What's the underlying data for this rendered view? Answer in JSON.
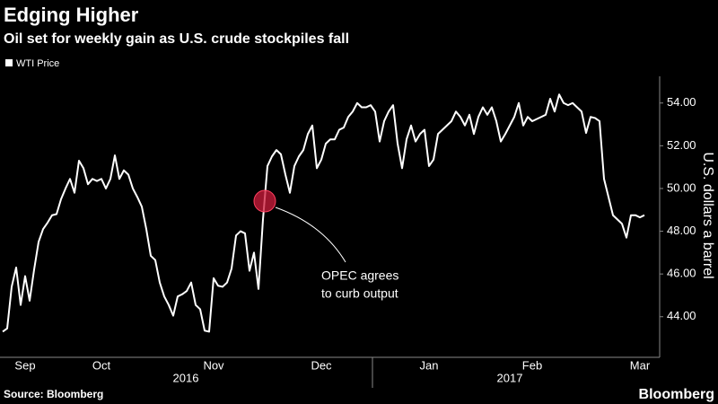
{
  "chart_data": {
    "type": "line",
    "title": "Edging Higher",
    "subtitle": "Oil set for weekly gain as U.S. crude stockpiles fall",
    "y_axis_label": "U.S. dollars a barrel",
    "annotation": [
      "OPEC agrees",
      "to curb output"
    ],
    "years": [
      "2016",
      "2017"
    ],
    "source": "Source: Bloomberg",
    "brand": "Bloomberg",
    "categories": [
      null,
      null,
      null,
      null,
      null,
      "Sep",
      null,
      null,
      null,
      null,
      null,
      null,
      null,
      null,
      null,
      null,
      null,
      null,
      null,
      null,
      null,
      null,
      "Oct",
      null,
      null,
      null,
      null,
      null,
      null,
      null,
      null,
      null,
      null,
      null,
      null,
      null,
      null,
      null,
      null,
      null,
      null,
      null,
      null,
      null,
      null,
      null,
      null,
      "Nov",
      null,
      null,
      null,
      null,
      null,
      null,
      null,
      null,
      null,
      null,
      null,
      null,
      null,
      null,
      null,
      null,
      null,
      null,
      null,
      null,
      null,
      null,
      null,
      "Dec",
      null,
      null,
      null,
      null,
      null,
      null,
      null,
      null,
      null,
      null,
      null,
      null,
      null,
      null,
      null,
      null,
      null,
      null,
      null,
      null,
      null,
      null,
      null,
      "Jan",
      null,
      null,
      null,
      null,
      null,
      null,
      null,
      null,
      null,
      null,
      null,
      null,
      null,
      null,
      null,
      null,
      null,
      null,
      null,
      null,
      null,
      null,
      "Feb",
      null,
      null,
      null,
      null,
      null,
      null,
      null,
      null,
      null,
      null,
      null,
      null,
      null,
      null,
      null,
      null,
      null,
      null,
      null,
      null,
      null,
      null,
      null,
      "Mar",
      null
    ],
    "series": [
      {
        "name": "WTI Price",
        "color": "#ffffff",
        "values": [
          43.3,
          43.45,
          45.4,
          46.3,
          44.55,
          45.9,
          44.75,
          46.2,
          47.5,
          48.1,
          48.4,
          48.75,
          48.8,
          49.5,
          50.0,
          50.45,
          49.8,
          51.3,
          50.95,
          50.2,
          50.45,
          50.35,
          50.45,
          50.0,
          50.45,
          51.55,
          50.45,
          50.85,
          50.65,
          50.0,
          49.6,
          49.15,
          48.1,
          46.85,
          46.65,
          45.6,
          44.95,
          44.55,
          44.05,
          44.95,
          45.05,
          45.2,
          45.6,
          44.55,
          44.35,
          43.35,
          43.3,
          45.8,
          45.45,
          45.4,
          45.6,
          46.25,
          47.8,
          48.0,
          47.9,
          46.15,
          47.0,
          45.3,
          48.55,
          51.05,
          51.5,
          51.8,
          51.6,
          50.65,
          49.8,
          51.05,
          51.5,
          51.8,
          52.55,
          52.95,
          50.95,
          51.35,
          52.1,
          52.3,
          52.3,
          52.75,
          52.85,
          53.35,
          53.6,
          54.0,
          53.8,
          53.8,
          53.9,
          53.6,
          52.2,
          53.15,
          53.6,
          53.9,
          52.1,
          50.95,
          52.3,
          52.95,
          52.2,
          52.55,
          52.75,
          51.05,
          51.35,
          52.55,
          52.75,
          52.95,
          53.15,
          53.6,
          53.35,
          52.95,
          53.45,
          52.55,
          53.35,
          53.8,
          53.45,
          53.8,
          53.15,
          52.2,
          52.55,
          52.95,
          53.35,
          54.0,
          52.95,
          53.35,
          53.15,
          53.25,
          53.35,
          53.45,
          54.2,
          53.6,
          54.4,
          54.0,
          53.9,
          54.0,
          53.8,
          53.6,
          52.6,
          53.35,
          53.3,
          53.15,
          50.45,
          49.6,
          48.75,
          48.55,
          48.35,
          47.7,
          48.75,
          48.75,
          48.65,
          48.75
        ]
      }
    ],
    "ylim": [
      42.1,
      55.25
    ],
    "yticks": [
      {
        "value": 44,
        "label": "44.00"
      },
      {
        "value": 46,
        "label": "46.00"
      },
      {
        "value": 48,
        "label": "48.00"
      },
      {
        "value": 50,
        "label": "50.00"
      },
      {
        "value": 52,
        "label": "52.00"
      },
      {
        "value": 54,
        "label": "54.00"
      }
    ],
    "grid": false
  }
}
